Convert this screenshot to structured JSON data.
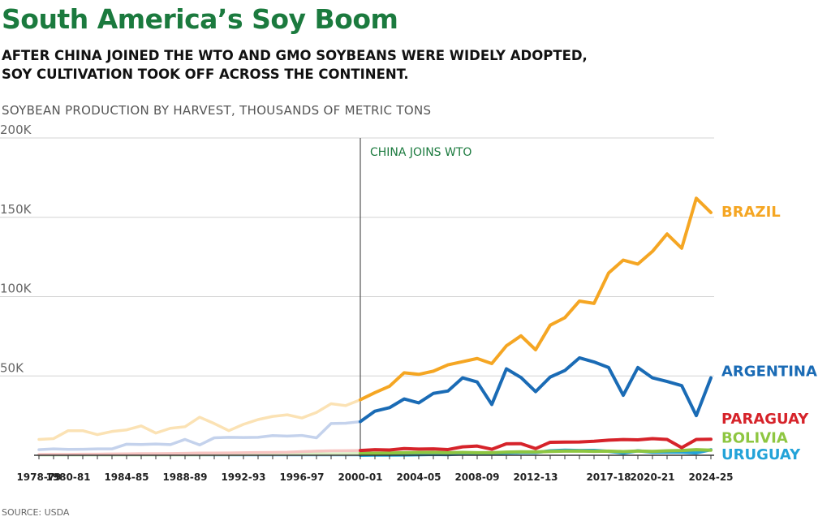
{
  "chart_data": {
    "type": "line",
    "title": "South America’s Soy Boom",
    "subtitle": "AFTER CHINA JOINED THE WTO AND GMO SOYBEANS WERE WIDELY ADOPTED, SOY CULTIVATION TOOK OFF ACROSS THE CONTINENT.",
    "units_label": "SOYBEAN PRODUCTION BY HARVEST, THOUSANDS OF METRIC TONS",
    "source": "SOURCE: USDA",
    "x": [
      "1978-79",
      "1979-80",
      "1980-81",
      "1981-82",
      "1982-83",
      "1983-84",
      "1984-85",
      "1985-86",
      "1986-87",
      "1987-88",
      "1988-89",
      "1989-90",
      "1990-91",
      "1991-92",
      "1992-93",
      "1993-94",
      "1994-95",
      "1995-96",
      "1996-97",
      "1997-98",
      "1998-99",
      "1999-00",
      "2000-01",
      "2001-02",
      "2002-03",
      "2003-04",
      "2004-05",
      "2005-06",
      "2006-07",
      "2007-08",
      "2008-09",
      "2009-10",
      "2010-11",
      "2011-12",
      "2012-13",
      "2013-14",
      "2014-15",
      "2015-16",
      "2016-17",
      "2017-18",
      "2018-19",
      "2019-20",
      "2020-21",
      "2021-22",
      "2022-23",
      "2023-24",
      "2024-25"
    ],
    "x_tick_labels": [
      "1978-79",
      "1980-81",
      "1984-85",
      "1988-89",
      "1992-93",
      "1996-97",
      "2000-01",
      "2004-05",
      "2008-09",
      "2012-13",
      "2017-18",
      "2020-21",
      "2024-25"
    ],
    "x_tick_indices": [
      0,
      2,
      6,
      10,
      14,
      18,
      22,
      26,
      30,
      34,
      39,
      42,
      46
    ],
    "y_tick_labels": [
      "50K",
      "100K",
      "150K",
      "200K"
    ],
    "y_tick_values": [
      50000,
      100000,
      150000,
      200000
    ],
    "ylim": [
      0,
      200000
    ],
    "grid": true,
    "highlight_start_index": 22,
    "annotation": {
      "label": "CHINA JOINS WTO",
      "x_index": 22
    },
    "series": [
      {
        "name": "BRAZIL",
        "color": "#f5a623",
        "faded_color": "#fbe2b4",
        "label_value": 154000,
        "values": [
          10000,
          10500,
          15500,
          15500,
          13000,
          15000,
          16000,
          18500,
          14000,
          17000,
          18000,
          24000,
          20000,
          15500,
          19500,
          22500,
          24500,
          25500,
          23500,
          27000,
          32500,
          31300,
          35000,
          39500,
          43500,
          52000,
          51000,
          53000,
          57000,
          59000,
          61000,
          57800,
          69000,
          75300,
          66500,
          82000,
          86700,
          97200,
          95700,
          114900,
          123000,
          120500,
          128500,
          139500,
          130500,
          162000,
          153000
        ]
      },
      {
        "name": "ARGENTINA",
        "color": "#1a6bb5",
        "faded_color": "#c4d2ec",
        "label_value": 53500,
        "values": [
          3500,
          4000,
          3700,
          3800,
          4000,
          4000,
          7000,
          6800,
          7100,
          6700,
          10000,
          6500,
          11000,
          11300,
          11200,
          11300,
          12400,
          12100,
          12500,
          11000,
          20000,
          20200,
          21200,
          27800,
          30000,
          35500,
          33000,
          39000,
          40500,
          48800,
          46200,
          32000,
          54500,
          49000,
          40100,
          49300,
          53400,
          61400,
          58800,
          55300,
          37800,
          55300,
          48800,
          46500,
          43900,
          25000,
          48800
        ]
      },
      {
        "name": "PARAGUAY",
        "color": "#d6232a",
        "faded_color": "#f6c4c1",
        "label_value": 23500,
        "values": [
          500,
          600,
          600,
          700,
          700,
          800,
          900,
          1000,
          1000,
          1100,
          1200,
          1400,
          1400,
          1500,
          1600,
          1700,
          1800,
          1900,
          2300,
          2600,
          2800,
          2900,
          3000,
          3500,
          3300,
          4200,
          3900,
          4000,
          3600,
          5300,
          5800,
          3800,
          7200,
          7300,
          4200,
          8200,
          8300,
          8400,
          8800,
          9500,
          9900,
          9700,
          10500,
          10000,
          4800,
          10000,
          10100
        ]
      },
      {
        "name": "BOLIVIA",
        "color": "#8ec641",
        "faded_color": "#dbeec4",
        "label_value": 11500,
        "values": [
          100,
          100,
          100,
          100,
          100,
          100,
          100,
          100,
          100,
          100,
          100,
          200,
          300,
          300,
          400,
          500,
          600,
          700,
          900,
          1000,
          900,
          1000,
          1200,
          1300,
          1400,
          1600,
          1700,
          1800,
          1600,
          1800,
          1600,
          1600,
          2000,
          2200,
          2100,
          2400,
          2600,
          2700,
          2500,
          2600,
          2300,
          2700,
          2400,
          2800,
          3000,
          3500,
          3200
        ]
      },
      {
        "name": "URUGUAY",
        "color": "#23a3d8",
        "faded_color": "#c2e4f4",
        "label_value": 1000,
        "values": [
          0,
          0,
          0,
          0,
          0,
          0,
          0,
          0,
          0,
          0,
          0,
          0,
          0,
          0,
          0,
          0,
          0,
          0,
          0,
          0,
          0,
          0,
          0,
          100,
          100,
          200,
          300,
          500,
          400,
          900,
          1000,
          900,
          1500,
          1700,
          1700,
          2800,
          3200,
          3000,
          3100,
          2500,
          1400,
          2800,
          1900,
          2000,
          2000,
          1500,
          3500
        ]
      }
    ]
  }
}
